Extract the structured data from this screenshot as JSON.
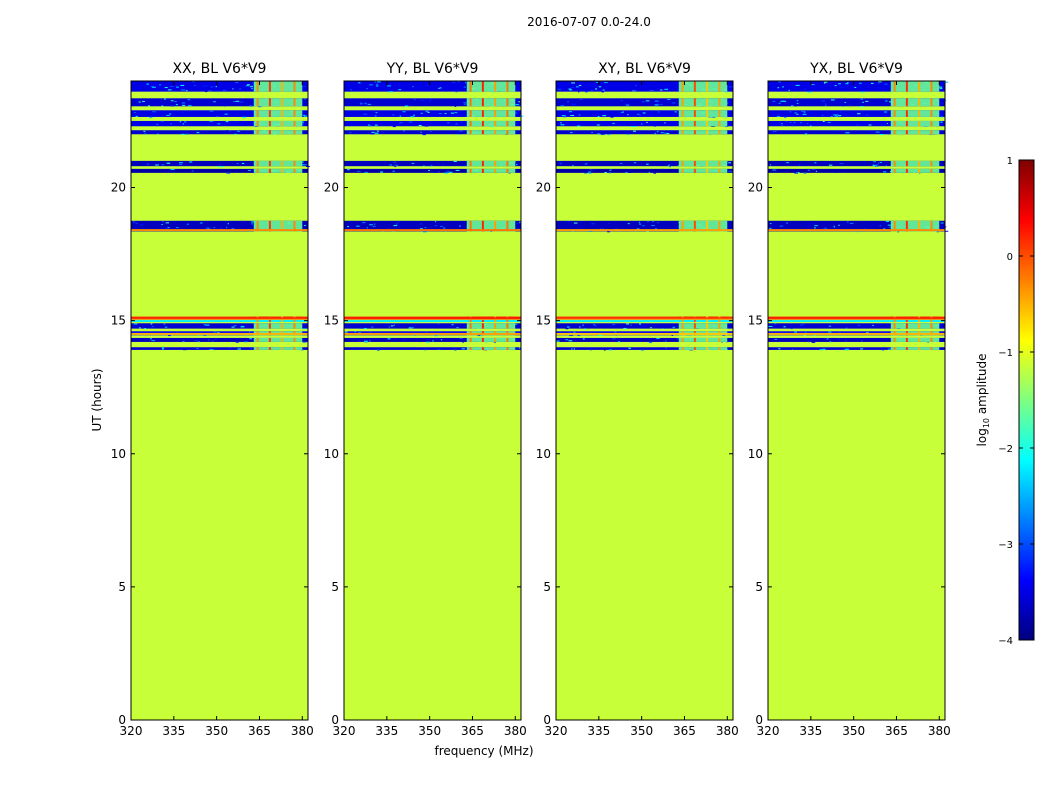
{
  "chart_data": {
    "type": "heatmap",
    "suptitle": "2016-07-07 0.0-24.0",
    "xlabel": "frequency (MHz)",
    "ylabel": "UT (hours)",
    "xlim": [
      320,
      382
    ],
    "ylim": [
      0,
      24
    ],
    "xticks": [
      320,
      335,
      350,
      365,
      380
    ],
    "yticks": [
      0,
      5,
      10,
      15,
      20
    ],
    "colorbar": {
      "label_prefix": "log",
      "label_sub": "10",
      "label_suffix": " amplitude",
      "range": [
        -4,
        1
      ],
      "ticks": [
        -4,
        -3,
        -2,
        -1,
        0,
        1
      ],
      "tick_labels": [
        "−4",
        "−3",
        "−2",
        "−1",
        "0",
        "1"
      ],
      "colormap": "jet"
    },
    "baseline_level": -1.15,
    "panels": [
      {
        "title": "XX, BL V6*V9",
        "bright_row_levels": [
          -0.3,
          0.1,
          -0.5
        ]
      },
      {
        "title": "YY, BL V6*V9",
        "bright_row_levels": [
          -0.2,
          0.2,
          -0.4
        ]
      },
      {
        "title": "XY, BL V6*V9",
        "bright_row_levels": [
          -0.4,
          0.0,
          -0.6
        ]
      },
      {
        "title": "YX, BL V6*V9",
        "bright_row_levels": [
          -0.3,
          0.15,
          -0.5
        ]
      }
    ],
    "rfi_subband_mhz": [
      363,
      380
    ],
    "noisy_bands_ut": [
      {
        "t0": 23.6,
        "t1": 24.0,
        "level": -3.5
      },
      {
        "t0": 23.05,
        "t1": 23.35,
        "level": -3.6
      },
      {
        "t0": 22.65,
        "t1": 22.9,
        "level": -3.5
      },
      {
        "t0": 22.3,
        "t1": 22.5,
        "level": -3.5
      },
      {
        "t0": 22.0,
        "t1": 22.15,
        "level": -3.6
      },
      {
        "t0": 20.8,
        "t1": 21.0,
        "level": -3.7
      },
      {
        "t0": 20.55,
        "t1": 20.7,
        "level": -3.8
      },
      {
        "t0": 18.35,
        "t1": 18.75,
        "level": -3.7
      },
      {
        "t0": 15.05,
        "t1": 15.15,
        "level": 0.3
      },
      {
        "t0": 14.95,
        "t1": 15.02,
        "level": -2.2
      },
      {
        "t0": 14.7,
        "t1": 14.9,
        "level": -3.6
      },
      {
        "t0": 14.45,
        "t1": 14.6,
        "level": -3.4
      },
      {
        "t0": 14.2,
        "t1": 14.35,
        "level": -3.7
      },
      {
        "t0": 13.9,
        "t1": 14.0,
        "level": -3.6
      }
    ]
  }
}
